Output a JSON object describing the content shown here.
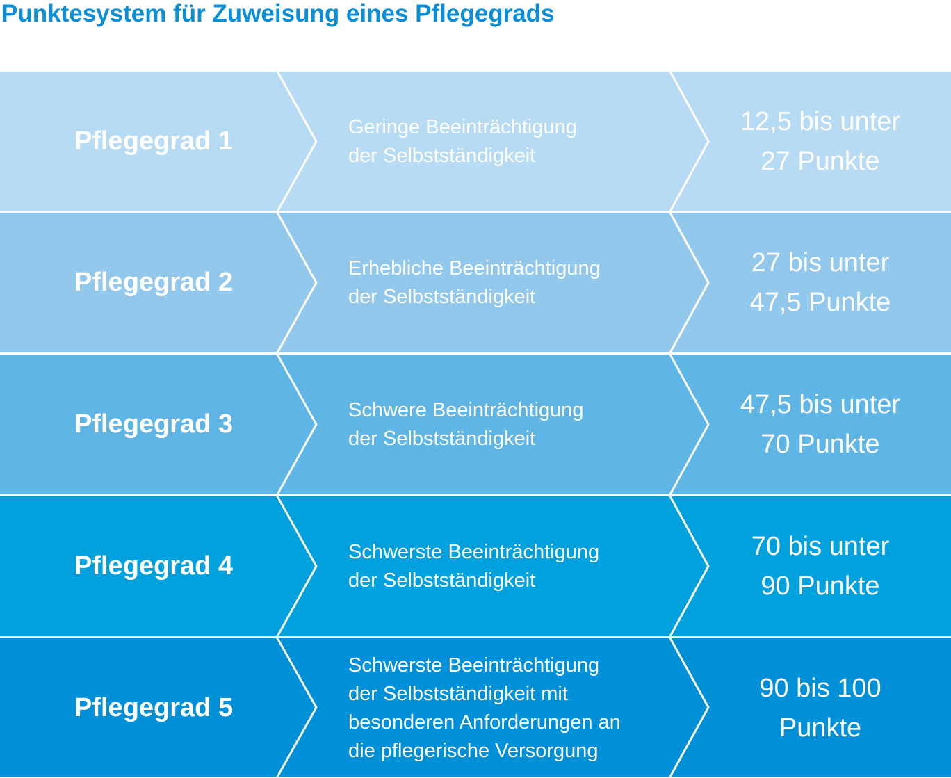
{
  "title": "Punktesystem für Zuweisung eines Pflegegrads",
  "rows": [
    {
      "grade": "Pflegegrad 1",
      "desc": [
        "Geringe Beeinträchtigung",
        "der Selbstständigkeit"
      ],
      "points": [
        "12,5 bis unter",
        "27 Punkte"
      ],
      "color": "#b7dbf2"
    },
    {
      "grade": "Pflegegrad 2",
      "desc": [
        "Erhebliche Beeinträchtigung",
        "der Selbstständigkeit"
      ],
      "points": [
        "27 bis unter",
        "47,5 Punkte"
      ],
      "color": "#91c8eb"
    },
    {
      "grade": "Pflegegrad 3",
      "desc": [
        "Schwere Beeinträchtigung",
        "der Selbstständigkeit"
      ],
      "points": [
        "47,5 bis unter",
        "70 Punkte"
      ],
      "color": "#5fb5e4"
    },
    {
      "grade": "Pflegegrad 4",
      "desc": [
        "Schwerste Beeinträchtigung",
        "der Selbstständigkeit"
      ],
      "points": [
        "70 bis unter",
        "90 Punkte"
      ],
      "color": "#00a1dd"
    },
    {
      "grade": "Pflegegrad 5",
      "desc": [
        "Schwerste Beeinträchtigung",
        "der Selbstständigkeit mit",
        "besonderen Anforderungen an",
        "die pflegerische Versorgung"
      ],
      "points": [
        "90 bis 100",
        "Punkte"
      ],
      "color": "#0090d7"
    }
  ]
}
